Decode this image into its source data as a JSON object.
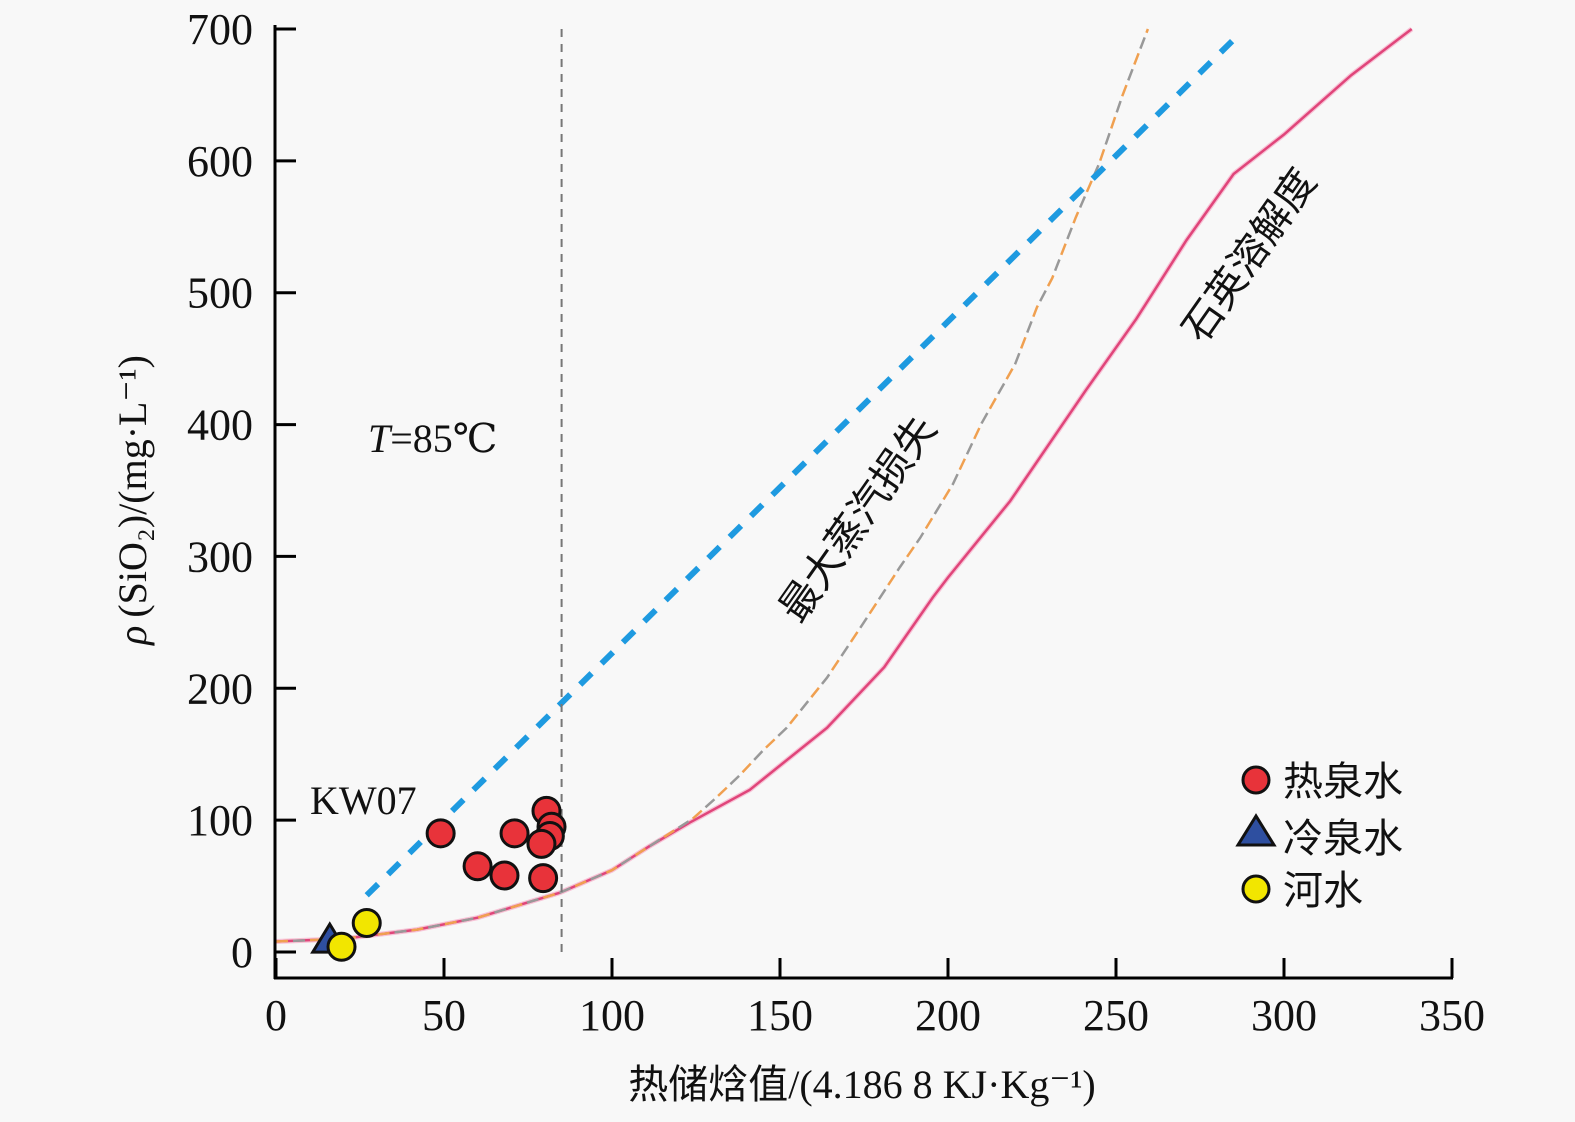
{
  "chart_data": {
    "type": "scatter",
    "title": "",
    "xlabel": "热储焓值/(4.186 8 KJ·Kg⁻¹)",
    "ylabel_prefix": "ρ",
    "ylabel": "(SiO₂)/(mg·L⁻¹)",
    "xlim": [
      0,
      350
    ],
    "ylim": [
      0,
      700
    ],
    "x_ticks": [
      0,
      50,
      100,
      150,
      200,
      250,
      300,
      350
    ],
    "x_tick_labels": [
      "0",
      "50",
      "100",
      "150",
      "200",
      "250",
      "300",
      "350"
    ],
    "y_ticks": [
      0,
      100,
      200,
      300,
      400,
      500,
      600,
      700
    ],
    "y_tick_labels": [
      "0",
      "100",
      "200",
      "300",
      "400",
      "500",
      "600",
      "700"
    ],
    "grid": false,
    "legend_position": "bottom-right",
    "series": [
      {
        "name": "热泉水",
        "marker": "circle",
        "color": "#e8333a",
        "points": [
          {
            "x": 49,
            "y": 90,
            "label": "KW07"
          },
          {
            "x": 60,
            "y": 65
          },
          {
            "x": 68,
            "y": 58
          },
          {
            "x": 71,
            "y": 90
          },
          {
            "x": 80.5,
            "y": 107
          },
          {
            "x": 82,
            "y": 95
          },
          {
            "x": 81.5,
            "y": 88
          },
          {
            "x": 79,
            "y": 82
          },
          {
            "x": 79.5,
            "y": 56
          }
        ]
      },
      {
        "name": "冷泉水",
        "marker": "triangle",
        "color": "#2e4fa0",
        "points": [
          {
            "x": 16,
            "y": 9
          }
        ]
      },
      {
        "name": "河水",
        "marker": "circle",
        "color": "#f2e600",
        "points": [
          {
            "x": 19.5,
            "y": 4
          },
          {
            "x": 27,
            "y": 22
          }
        ]
      }
    ],
    "lines": [
      {
        "name": "石英溶解度",
        "style": "solid",
        "color": "#e0457a",
        "points": [
          [
            0,
            8
          ],
          [
            20,
            10
          ],
          [
            42,
            17
          ],
          [
            60,
            26
          ],
          [
            84.5,
            45
          ],
          [
            100,
            62
          ],
          [
            111,
            80
          ],
          [
            123,
            98
          ],
          [
            141,
            123
          ],
          [
            164,
            170
          ],
          [
            181,
            216
          ],
          [
            195.5,
            269
          ],
          [
            200,
            284
          ],
          [
            218.5,
            342
          ],
          [
            241,
            426
          ],
          [
            256,
            480
          ],
          [
            271,
            540
          ],
          [
            285,
            590
          ],
          [
            300,
            620
          ],
          [
            320,
            665
          ],
          [
            338,
            700
          ]
        ]
      },
      {
        "name": "最大蒸汽损失",
        "style": "dashed",
        "color": "#f0a050",
        "points": [
          [
            0,
            8
          ],
          [
            20,
            10
          ],
          [
            42,
            17
          ],
          [
            60,
            26
          ],
          [
            84.5,
            45
          ],
          [
            100,
            62
          ],
          [
            111,
            80
          ],
          [
            124,
            101
          ],
          [
            131,
            117
          ],
          [
            138,
            134
          ],
          [
            145,
            153
          ],
          [
            152,
            170
          ],
          [
            164,
            208
          ],
          [
            174.7,
            249
          ],
          [
            185.7,
            292
          ],
          [
            191.7,
            314
          ],
          [
            201.5,
            355
          ],
          [
            210,
            401
          ],
          [
            220,
            446
          ],
          [
            226.5,
            489
          ],
          [
            231,
            511
          ],
          [
            238,
            557
          ],
          [
            245,
            598
          ],
          [
            252,
            650
          ],
          [
            259.5,
            700
          ]
        ]
      },
      {
        "name": "blue-dashed-line",
        "style": "dashed",
        "color": "#1e9ae0",
        "points": [
          [
            27,
            43
          ],
          [
            287,
            697
          ]
        ]
      },
      {
        "name": "T=85℃",
        "style": "dashed",
        "color": "#777777",
        "points": [
          [
            85,
            0
          ],
          [
            85,
            703
          ]
        ]
      }
    ],
    "annotations": {
      "kw07": "KW07",
      "temperature_prefix": "T",
      "temperature_value": "=85℃",
      "steam_loss": "最大蒸汽损失",
      "quartz_solubility": "石英溶解度"
    }
  }
}
